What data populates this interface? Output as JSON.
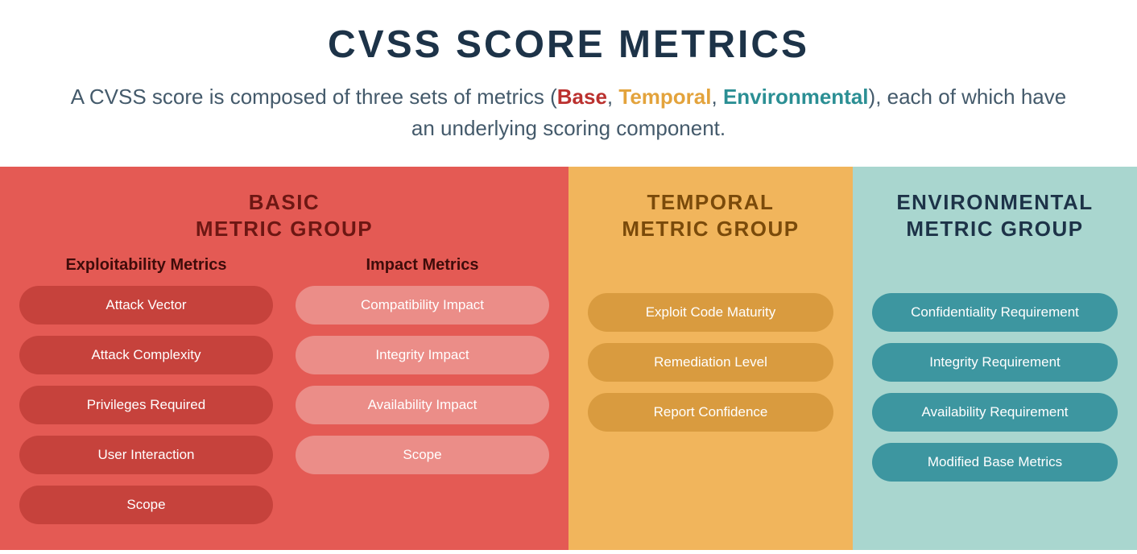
{
  "colors": {
    "title": "#1d3348",
    "subtitle": "#445a6b",
    "base_word": "#bb312f",
    "temporal_word": "#e3a33c",
    "environmental_word": "#2b8f94",
    "group_basic_bg": "#e45a54",
    "group_basic_title": "#6d1713",
    "group_basic_subhead": "#3f0c0a",
    "pill_exploit_bg": "#c6423c",
    "pill_impact_bg": "#eb8d88",
    "group_temporal_bg": "#f1b55c",
    "group_temporal_title": "#7a4a0a",
    "pill_temporal_bg": "#d99b3f",
    "group_env_bg": "#a9d6cf",
    "group_env_title": "#1d3348",
    "pill_env_bg": "#3d96a0"
  },
  "layout": {
    "basic_width_pct": 50,
    "temporal_width_pct": 25,
    "env_width_pct": 25
  },
  "header": {
    "title": "CVSS SCORE METRICS",
    "subtitle_pre": "A CVSS score is composed of three sets of metrics (",
    "word_base": "Base",
    "sep1": ", ",
    "word_temporal": "Temporal",
    "sep2": ", ",
    "word_env": "Environmental",
    "subtitle_post": "), each of which have an underlying scoring component."
  },
  "groups": {
    "basic": {
      "title_line1": "BASIC",
      "title_line2": "METRIC GROUP",
      "exploit": {
        "heading": "Exploitability Metrics",
        "items": [
          "Attack Vector",
          "Attack Complexity",
          "Privileges Required",
          "User Interaction",
          "Scope"
        ]
      },
      "impact": {
        "heading": "Impact Metrics",
        "items": [
          "Compatibility Impact",
          "Integrity Impact",
          "Availability Impact",
          "Scope"
        ]
      }
    },
    "temporal": {
      "title_line1": "TEMPORAL",
      "title_line2": "METRIC GROUP",
      "items": [
        "Exploit Code Maturity",
        "Remediation Level",
        "Report Confidence"
      ]
    },
    "environmental": {
      "title_line1": "ENVIRONMENTAL",
      "title_line2": "METRIC GROUP",
      "items": [
        "Confidentiality Requirement",
        "Integrity Requirement",
        "Availability Requirement",
        "Modified Base Metrics"
      ]
    }
  }
}
